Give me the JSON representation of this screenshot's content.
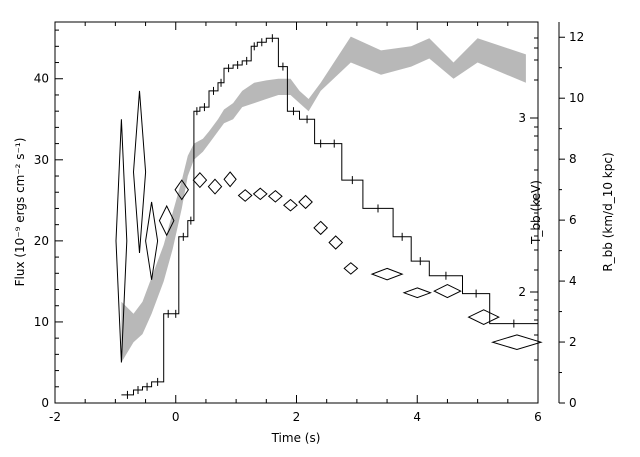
{
  "chart_data": {
    "type": "line",
    "xlabel": "Time (s)",
    "ylabel_left": "Flux (10⁻⁹ ergs cm⁻² s⁻¹)",
    "ylabel_right_inner": "T_bb (keV)",
    "ylabel_right_outer": "R_bb (km/d_10 kpc)",
    "xlim": [
      -2,
      6
    ],
    "ylim_left": [
      0,
      47
    ],
    "xticks": [
      -2,
      0,
      2,
      4,
      6
    ],
    "yticks_left": [
      0,
      10,
      20,
      30,
      40
    ],
    "temp_axis_ticks": [
      2,
      3
    ],
    "radius_axis": {
      "ylim": [
        0,
        12.5
      ],
      "ticks": [
        0,
        2,
        4,
        6,
        8,
        10,
        12
      ]
    },
    "series": [
      {
        "kind": "histogram",
        "edges": [
          -0.9,
          -0.7,
          -0.55,
          -0.4,
          -0.2,
          -0.05,
          0.05,
          0.2,
          0.3,
          0.4,
          0.55,
          0.7,
          0.8,
          0.95,
          1.1,
          1.25,
          1.35,
          1.5,
          1.7,
          1.85,
          2.05,
          2.3,
          2.5,
          2.75,
          3.1,
          3.6,
          3.9,
          4.2,
          4.75,
          5.2,
          6.0
        ],
        "values": [
          1.0,
          1.6,
          2.0,
          2.6,
          11.0,
          11.0,
          20.5,
          22.5,
          36.0,
          36.5,
          38.5,
          39.5,
          41.3,
          41.7,
          42.2,
          44.0,
          44.5,
          45.0,
          41.5,
          36.0,
          35.0,
          32.0,
          32.0,
          27.5,
          24.0,
          20.5,
          17.5,
          15.7,
          13.5,
          9.8
        ]
      },
      {
        "kind": "band",
        "x": [
          -0.9,
          -0.7,
          -0.55,
          -0.4,
          -0.2,
          -0.05,
          0.1,
          0.2,
          0.3,
          0.45,
          0.55,
          0.7,
          0.8,
          0.95,
          1.1,
          1.3,
          1.5,
          1.7,
          1.9,
          2.05,
          2.2,
          2.4,
          2.9,
          3.4,
          3.9,
          4.2,
          4.6,
          5.0,
          5.8
        ],
        "upper": [
          12.5,
          11.0,
          12.5,
          15.5,
          19.5,
          23.5,
          27.5,
          30.5,
          32.0,
          32.6,
          33.5,
          35.0,
          36.2,
          37.0,
          38.5,
          39.5,
          39.8,
          40.0,
          40.0,
          38.5,
          37.5,
          39.5,
          45.2,
          43.5,
          44.0,
          45.0,
          42.0,
          45.0,
          43.0
        ],
        "lower": [
          5.0,
          7.5,
          8.5,
          11.0,
          15.0,
          19.0,
          24.0,
          28.0,
          30.0,
          31.0,
          32.0,
          33.5,
          34.5,
          35.0,
          36.5,
          37.0,
          37.5,
          38.0,
          38.0,
          37.0,
          36.0,
          38.5,
          42.0,
          40.5,
          41.5,
          42.5,
          40.0,
          42.0,
          39.5
        ]
      },
      {
        "kind": "diamonds",
        "points": [
          {
            "x": -0.9,
            "y": 20.0,
            "hw": 0.09,
            "hh": 15.0
          },
          {
            "x": -0.6,
            "y": 28.5,
            "hw": 0.1,
            "hh": 10.0
          },
          {
            "x": -0.4,
            "y": 20.0,
            "hw": 0.1,
            "hh": 4.8
          },
          {
            "x": -0.15,
            "y": 22.5,
            "hw": 0.12,
            "hh": 1.8
          },
          {
            "x": 0.1,
            "y": 26.3,
            "hw": 0.11,
            "hh": 1.2
          },
          {
            "x": 0.4,
            "y": 27.5,
            "hw": 0.11,
            "hh": 0.9
          },
          {
            "x": 0.65,
            "y": 26.7,
            "hw": 0.11,
            "hh": 0.9
          },
          {
            "x": 0.9,
            "y": 27.6,
            "hw": 0.1,
            "hh": 0.9
          },
          {
            "x": 1.15,
            "y": 25.6,
            "hw": 0.11,
            "hh": 0.7
          },
          {
            "x": 1.4,
            "y": 25.8,
            "hw": 0.11,
            "hh": 0.7
          },
          {
            "x": 1.65,
            "y": 25.5,
            "hw": 0.11,
            "hh": 0.7
          },
          {
            "x": 1.9,
            "y": 24.4,
            "hw": 0.11,
            "hh": 0.7
          },
          {
            "x": 2.15,
            "y": 24.8,
            "hw": 0.11,
            "hh": 0.8
          },
          {
            "x": 2.4,
            "y": 21.6,
            "hw": 0.11,
            "hh": 0.8
          },
          {
            "x": 2.65,
            "y": 19.8,
            "hw": 0.11,
            "hh": 0.8
          },
          {
            "x": 2.9,
            "y": 16.6,
            "hw": 0.11,
            "hh": 0.7
          },
          {
            "x": 3.5,
            "y": 15.9,
            "hw": 0.25,
            "hh": 0.7
          },
          {
            "x": 4.0,
            "y": 13.6,
            "hw": 0.22,
            "hh": 0.6
          },
          {
            "x": 4.5,
            "y": 13.8,
            "hw": 0.22,
            "hh": 0.8
          },
          {
            "x": 5.1,
            "y": 10.6,
            "hw": 0.25,
            "hh": 0.9
          },
          {
            "x": 5.65,
            "y": 7.5,
            "hw": 0.4,
            "hh": 0.9
          }
        ]
      }
    ]
  }
}
